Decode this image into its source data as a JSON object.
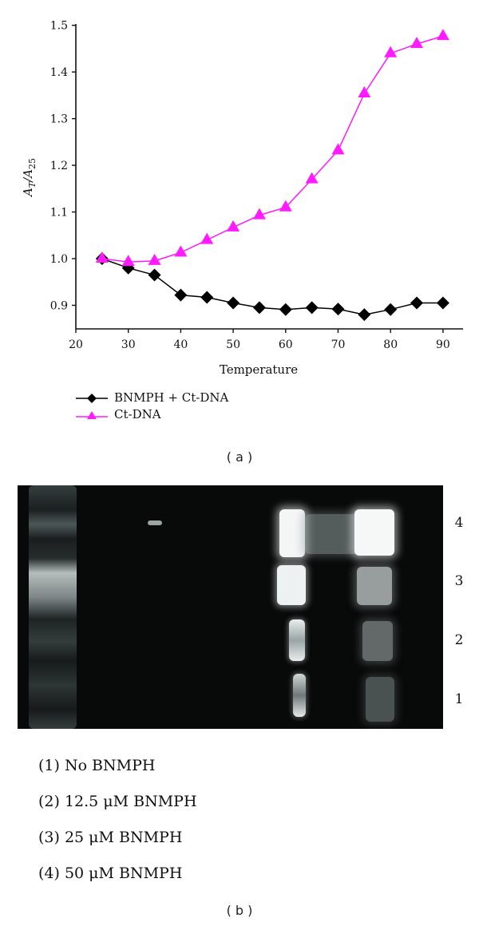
{
  "figure_a": {
    "panel_label": "( a )",
    "x_axis_title": "Temperature",
    "y_axis_title": {
      "base": "A",
      "sub_top": "T",
      "mid": "/A",
      "sub_bottom": "25"
    },
    "x_ticks": [
      "20",
      "30",
      "40",
      "50",
      "60",
      "70",
      "80",
      "90"
    ],
    "y_ticks": [
      "0.9",
      "1.0",
      "1.1",
      "1.2",
      "1.3",
      "1.4",
      "1.5"
    ],
    "legend": [
      {
        "label": "BNMPH + Ct-DNA",
        "marker": "diamond-icon",
        "color": "#000000"
      },
      {
        "label": "Ct-DNA",
        "marker": "triangle-icon",
        "color": "#ff1aff"
      }
    ]
  },
  "chart_data": {
    "type": "line",
    "title": "",
    "xlabel": "Temperature",
    "ylabel": "A_T/A_25",
    "xlim": [
      20,
      93
    ],
    "ylim": [
      0.85,
      1.5
    ],
    "grid": false,
    "legend_position": "below",
    "x": [
      25,
      30,
      35,
      40,
      45,
      50,
      55,
      60,
      65,
      70,
      75,
      80,
      85,
      90
    ],
    "series": [
      {
        "name": "BNMPH + Ct-DNA",
        "color": "#000000",
        "marker": "diamond",
        "values": [
          1.0,
          0.98,
          0.965,
          0.922,
          0.917,
          0.905,
          0.895,
          0.891,
          0.895,
          0.892,
          0.88,
          0.891,
          0.905,
          0.905
        ]
      },
      {
        "name": "Ct-DNA",
        "color": "#ff1aff",
        "marker": "triangle",
        "values": [
          1.0,
          0.993,
          0.995,
          1.013,
          1.04,
          1.067,
          1.093,
          1.11,
          1.17,
          1.232,
          1.354,
          1.44,
          1.46,
          1.477
        ]
      }
    ]
  },
  "figure_b": {
    "panel_label": "( b )",
    "lane_labels": [
      "4",
      "3",
      "2",
      "1"
    ],
    "conditions": [
      "(1) No BNMPH",
      "(2) 12.5 μM BNMPH",
      "(3) 25 μM BNMPH",
      "(4) 50 μM BNMPH"
    ]
  }
}
